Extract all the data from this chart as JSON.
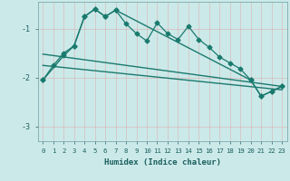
{
  "xlabel": "Humidex (Indice chaleur)",
  "background_color": "#cce9e9",
  "grid_color": "#b0d8d8",
  "line_color": "#1a7a6e",
  "xlim": [
    -0.5,
    23.5
  ],
  "ylim": [
    -3.3,
    -0.45
  ],
  "yticks": [
    -3,
    -2,
    -1
  ],
  "xticks": [
    0,
    1,
    2,
    3,
    4,
    5,
    6,
    7,
    8,
    9,
    10,
    11,
    12,
    13,
    14,
    15,
    16,
    17,
    18,
    19,
    20,
    21,
    22,
    23
  ],
  "series1_x": [
    0,
    1,
    2,
    3,
    4,
    5,
    6,
    7,
    8,
    9,
    10,
    11,
    12,
    13,
    14,
    15,
    16,
    17,
    18,
    19,
    20,
    21,
    22,
    23
  ],
  "series1_y": [
    -2.05,
    -1.75,
    -1.5,
    -1.35,
    -0.75,
    -0.6,
    -0.75,
    -0.62,
    -0.9,
    -1.1,
    -1.25,
    -0.88,
    -1.1,
    -1.22,
    -0.95,
    -1.22,
    -1.38,
    -1.58,
    -1.7,
    -1.82,
    -2.05,
    -2.38,
    -2.28,
    -2.18
  ],
  "series2_x": [
    0,
    2,
    3,
    4,
    5,
    6,
    7,
    20,
    21,
    22,
    23
  ],
  "series2_y": [
    -2.05,
    -1.55,
    -1.35,
    -0.75,
    -0.6,
    -0.75,
    -0.62,
    -2.05,
    -2.38,
    -2.28,
    -2.18
  ],
  "trend1_x": [
    0,
    23
  ],
  "trend1_y": [
    -1.52,
    -2.18
  ],
  "trend2_x": [
    0,
    23
  ],
  "trend2_y": [
    -1.75,
    -2.25
  ]
}
